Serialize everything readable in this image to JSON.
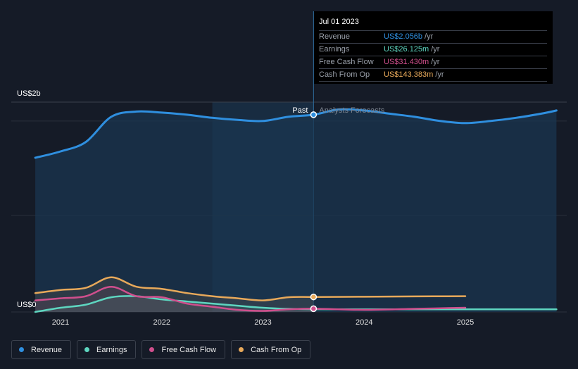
{
  "chart_data": {
    "type": "line",
    "y_axis_top_label": "US$2b",
    "y_axis_bottom_label": "US$0",
    "ylim": [
      0,
      2.0
    ],
    "x_ticks": [
      "2021",
      "2022",
      "2023",
      "2024",
      "2025"
    ],
    "past_label": "Past",
    "forecast_label": "Analysts Forecasts",
    "highlight_date": "2023.5",
    "series": [
      {
        "name": "Revenue",
        "color": "#2f8fdf",
        "points": [
          [
            2020.75,
            1.47
          ],
          [
            2021.0,
            1.53
          ],
          [
            2021.25,
            1.62
          ],
          [
            2021.5,
            1.86
          ],
          [
            2021.75,
            1.91
          ],
          [
            2022.0,
            1.9
          ],
          [
            2022.25,
            1.88
          ],
          [
            2022.5,
            1.85
          ],
          [
            2022.75,
            1.83
          ],
          [
            2023.0,
            1.82
          ],
          [
            2023.25,
            1.86
          ],
          [
            2023.5,
            2.056
          ],
          [
            2023.75,
            1.93
          ],
          [
            2024.0,
            1.92
          ],
          [
            2024.25,
            1.89
          ],
          [
            2024.5,
            1.86
          ],
          [
            2024.75,
            1.82
          ],
          [
            2025.0,
            1.8
          ],
          [
            2025.25,
            1.82
          ],
          [
            2025.5,
            1.85
          ],
          [
            2025.75,
            1.89
          ],
          [
            2025.9,
            1.92
          ]
        ]
      },
      {
        "name": "Earnings",
        "color": "#5ed6c0",
        "points": [
          [
            2020.75,
            0.0
          ],
          [
            2021.0,
            0.04
          ],
          [
            2021.25,
            0.07
          ],
          [
            2021.5,
            0.14
          ],
          [
            2021.75,
            0.15
          ],
          [
            2022.0,
            0.12
          ],
          [
            2022.25,
            0.1
          ],
          [
            2022.5,
            0.08
          ],
          [
            2022.75,
            0.06
          ],
          [
            2023.0,
            0.04
          ],
          [
            2023.25,
            0.03
          ],
          [
            2023.5,
            0.026
          ],
          [
            2024.0,
            0.025
          ],
          [
            2024.5,
            0.025
          ],
          [
            2025.0,
            0.025
          ],
          [
            2025.5,
            0.025
          ],
          [
            2025.9,
            0.025
          ]
        ]
      },
      {
        "name": "Free Cash Flow",
        "color": "#d04f8d",
        "points": [
          [
            2020.75,
            0.11
          ],
          [
            2021.0,
            0.13
          ],
          [
            2021.25,
            0.15
          ],
          [
            2021.5,
            0.24
          ],
          [
            2021.75,
            0.15
          ],
          [
            2022.0,
            0.14
          ],
          [
            2022.25,
            0.08
          ],
          [
            2022.5,
            0.05
          ],
          [
            2022.75,
            0.02
          ],
          [
            2023.0,
            0.01
          ],
          [
            2023.25,
            0.025
          ],
          [
            2023.5,
            0.031
          ],
          [
            2024.0,
            0.02
          ],
          [
            2024.5,
            0.03
          ],
          [
            2025.0,
            0.04
          ]
        ]
      },
      {
        "name": "Cash From Op",
        "color": "#e8a95a",
        "points": [
          [
            2020.75,
            0.18
          ],
          [
            2021.0,
            0.21
          ],
          [
            2021.25,
            0.23
          ],
          [
            2021.5,
            0.33
          ],
          [
            2021.75,
            0.24
          ],
          [
            2022.0,
            0.22
          ],
          [
            2022.25,
            0.18
          ],
          [
            2022.5,
            0.15
          ],
          [
            2022.75,
            0.13
          ],
          [
            2023.0,
            0.11
          ],
          [
            2023.25,
            0.14
          ],
          [
            2023.5,
            0.143
          ],
          [
            2024.0,
            0.145
          ],
          [
            2024.5,
            0.148
          ],
          [
            2025.0,
            0.15
          ]
        ]
      }
    ]
  },
  "tooltip": {
    "date": "Jul 01 2023",
    "rows": [
      {
        "label": "Revenue",
        "value": "US$2.056b",
        "unit": "/yr",
        "color": "#2f8fdf"
      },
      {
        "label": "Earnings",
        "value": "US$26.125m",
        "unit": "/yr",
        "color": "#5ed6c0"
      },
      {
        "label": "Free Cash Flow",
        "value": "US$31.430m",
        "unit": "/yr",
        "color": "#d04f8d"
      },
      {
        "label": "Cash From Op",
        "value": "US$143.383m",
        "unit": "/yr",
        "color": "#e8a95a"
      }
    ]
  },
  "legend": [
    {
      "label": "Revenue",
      "color": "#2f8fdf"
    },
    {
      "label": "Earnings",
      "color": "#5ed6c0"
    },
    {
      "label": "Free Cash Flow",
      "color": "#d04f8d"
    },
    {
      "label": "Cash From Op",
      "color": "#e8a95a"
    }
  ]
}
